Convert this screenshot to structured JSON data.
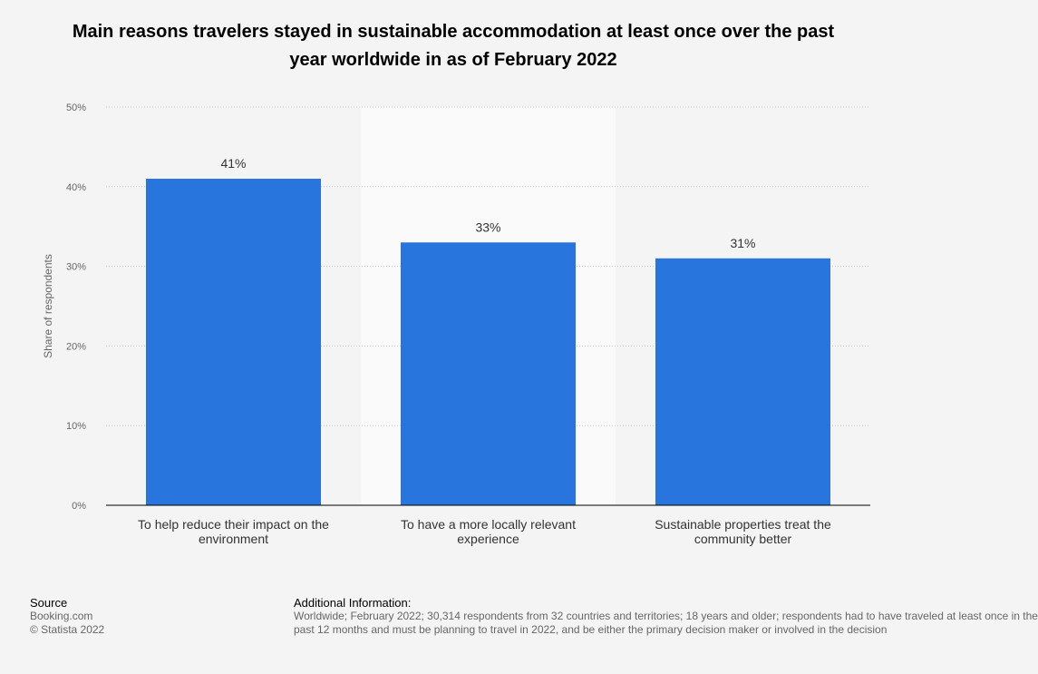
{
  "title": "Main reasons travelers stayed in sustainable accommodation at least once over the past year worldwide in as of February 2022",
  "chart_data": {
    "type": "bar",
    "categories": [
      [
        "To help reduce their impact on the",
        "environment"
      ],
      [
        "To have a more locally relevant",
        "experience"
      ],
      [
        "Sustainable properties treat the",
        "community better"
      ]
    ],
    "values": [
      41,
      33,
      31
    ],
    "value_labels": [
      "41%",
      "33%",
      "31%"
    ],
    "ylabel": "Share of respondents",
    "ylim": [
      0,
      50
    ],
    "yticks": [
      "0%",
      "10%",
      "20%",
      "30%",
      "40%",
      "50%"
    ],
    "grid": true,
    "highlighted_category_index": 1,
    "colors": {
      "bar": "#2876dd",
      "background": "#f4f4f4",
      "highlight_band": "#fafafa",
      "grid": "#c8c8c8",
      "axis": "#000000"
    }
  },
  "footer": {
    "source_heading": "Source",
    "source_lines": [
      "Booking.com",
      "© Statista 2022"
    ],
    "info_heading": "Additional Information:",
    "info_lines": [
      "Worldwide; February 2022; 30,314 respondents from 32 countries and territories; 18 years and older; respondents had to have traveled at least once in the",
      "past 12 months and must be planning to travel in 2022, and be either the primary decision maker or involved in the decision"
    ]
  }
}
